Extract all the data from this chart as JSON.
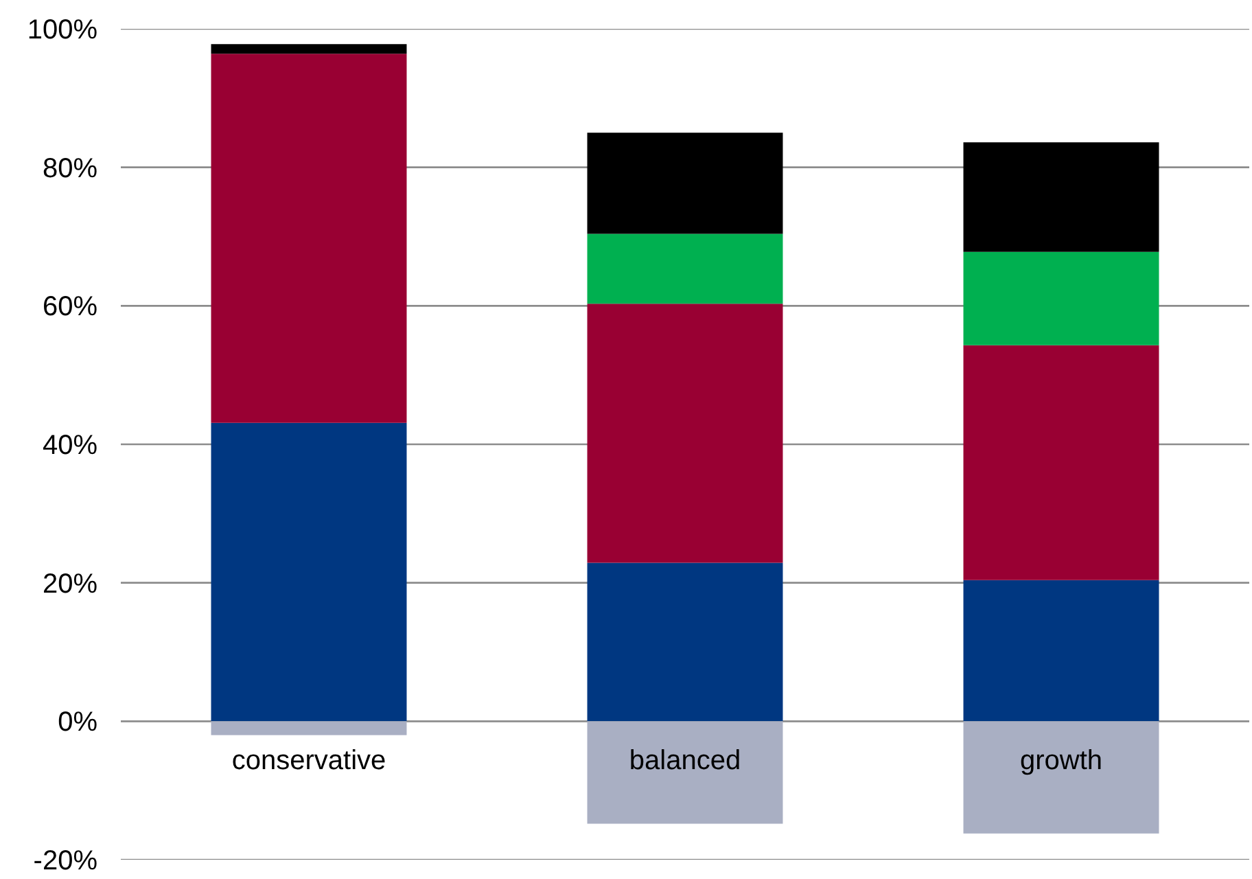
{
  "chart_data": {
    "type": "bar",
    "stacked": true,
    "categories": [
      "conservative",
      "balanced",
      "growth"
    ],
    "series": [
      {
        "color": "#003781",
        "values": [
          43.1,
          22.9,
          20.4
        ]
      },
      {
        "color": "#990033",
        "values": [
          53.3,
          37.4,
          33.9
        ]
      },
      {
        "color": "#00b050",
        "values": [
          0,
          10.1,
          13.5
        ]
      },
      {
        "color": "#000000",
        "values": [
          1.4,
          14.6,
          15.8
        ]
      },
      {
        "color": "#a9afc3",
        "values": [
          -2.0,
          -14.8,
          -16.2
        ]
      }
    ],
    "ylim": [
      -20,
      100
    ],
    "yticks": [
      {
        "value": -20,
        "label": "-20%"
      },
      {
        "value": 0,
        "label": "0%"
      },
      {
        "value": 20,
        "label": "20%"
      },
      {
        "value": 40,
        "label": "40%"
      },
      {
        "value": 60,
        "label": "60%"
      },
      {
        "value": 80,
        "label": "80%"
      },
      {
        "value": 100,
        "label": "100%"
      }
    ],
    "grid": "y"
  }
}
